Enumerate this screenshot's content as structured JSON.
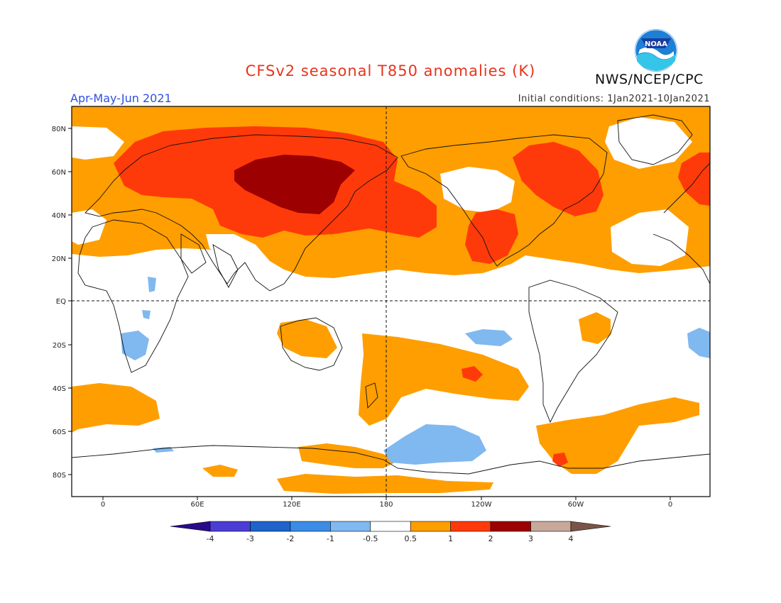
{
  "title": "CFSv2 seasonal T850 anomalies (K)",
  "period": "Apr-May-Jun 2021",
  "initial_conditions": "Initial conditions: 1Jan2021-10Jan2021",
  "agency": "NWS/NCEP/CPC",
  "logo_text": "NOAA",
  "lat_labels": [
    "80N",
    "60N",
    "40N",
    "20N",
    "EQ",
    "20S",
    "40S",
    "60S",
    "80S"
  ],
  "lon_labels": [
    "0",
    "60E",
    "120E",
    "180",
    "120W",
    "60W",
    "0"
  ],
  "colorbar": {
    "labels": [
      "-4",
      "-3",
      "-2",
      "-1",
      "-0.5",
      "0.5",
      "1",
      "2",
      "3",
      "4"
    ],
    "colors": [
      "#2a0a8a",
      "#4b3dd4",
      "#1f63cc",
      "#3a8ce6",
      "#80b8f0",
      "#ffffff",
      "#ff9e00",
      "#ff3a0a",
      "#9c0000",
      "#c9a89c",
      "#7a5448"
    ]
  }
}
